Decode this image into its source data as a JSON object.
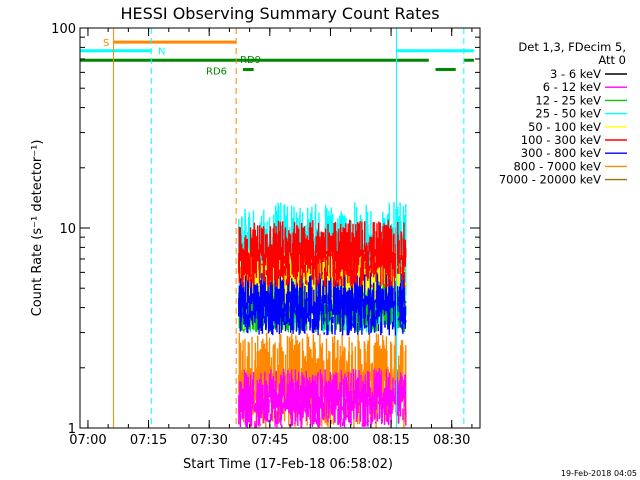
{
  "chart_data": {
    "type": "line",
    "title": "HESSI Observing Summary Count Rates",
    "xlabel": "Start Time (17-Feb-18 06:58:02)",
    "ylabel": "Count Rate (s⁻¹ detector⁻¹)",
    "yscale": "log",
    "ylim": [
      1,
      100
    ],
    "xlim": [
      "06:58:02",
      "08:37:00"
    ],
    "x_ticks": [
      "07:00",
      "07:15",
      "07:30",
      "07:45",
      "08:00",
      "08:15",
      "08:30"
    ],
    "y_ticks": [
      "1",
      "10",
      "100"
    ],
    "legend_header": [
      "Det 1,3, FDecim 5,",
      "Att 0"
    ],
    "legend_position": "right",
    "series": [
      {
        "name": "3 - 6 keV",
        "color": "#000000",
        "band": null
      },
      {
        "name": "6 - 12 keV",
        "color": "#ff00ff",
        "band": [
          1.0,
          2.0
        ]
      },
      {
        "name": "12 - 25 keV",
        "color": "#00cc00",
        "band": [
          3.0,
          5.5
        ]
      },
      {
        "name": "25 - 50 keV",
        "color": "#00ffff",
        "band": [
          3.0,
          13.5
        ]
      },
      {
        "name": "50 - 100 keV",
        "color": "#ffff00",
        "band": [
          4.0,
          8.0
        ]
      },
      {
        "name": "100 - 300 keV",
        "color": "#ff0000",
        "band": [
          5.0,
          11.0
        ]
      },
      {
        "name": "300 - 800 keV",
        "color": "#0000ff",
        "band": [
          2.9,
          6.0
        ]
      },
      {
        "name": "800 - 7000 keV",
        "color": "#ff8800",
        "band": [
          1.0,
          3.0
        ]
      },
      {
        "name": "7000 - 20000 keV",
        "color": "#997700",
        "band": null
      }
    ],
    "data_interval": [
      "07:37:20",
      "08:18:40"
    ],
    "flags": [
      {
        "label": "S",
        "color": "#ff8800",
        "segments": [
          [
            "07:06:20",
            "07:36:40"
          ]
        ],
        "level": 85
      },
      {
        "label": "N",
        "color": "#00ffff",
        "segments": [
          [
            "06:58:02",
            "07:15:40"
          ],
          [
            "08:16:20",
            "08:35:30"
          ]
        ],
        "level": 77
      },
      {
        "label": "RD9",
        "color": "#008800",
        "segments": [
          [
            "06:58:02",
            "08:24:20"
          ],
          [
            "08:33:00",
            "08:35:30"
          ]
        ],
        "level": 69
      },
      {
        "label": "RD6",
        "color": "#008800",
        "segments": [
          [
            "07:38:20",
            "07:41:00"
          ],
          [
            "08:26:00",
            "08:31:00"
          ]
        ],
        "level": 62
      }
    ],
    "vertical_lines": [
      {
        "time": "07:06:20",
        "color": "#ff8800",
        "style": "solid"
      },
      {
        "time": "07:15:40",
        "color": "#00ffff",
        "style": "dashed"
      },
      {
        "time": "07:36:40",
        "color": "#ff8800",
        "style": "dashed"
      },
      {
        "time": "08:16:20",
        "color": "#00ffff",
        "style": "solid"
      },
      {
        "time": "08:33:00",
        "color": "#00ffff",
        "style": "dashed"
      }
    ],
    "grid": false
  },
  "timestamp": "19-Feb-2018 04:05"
}
